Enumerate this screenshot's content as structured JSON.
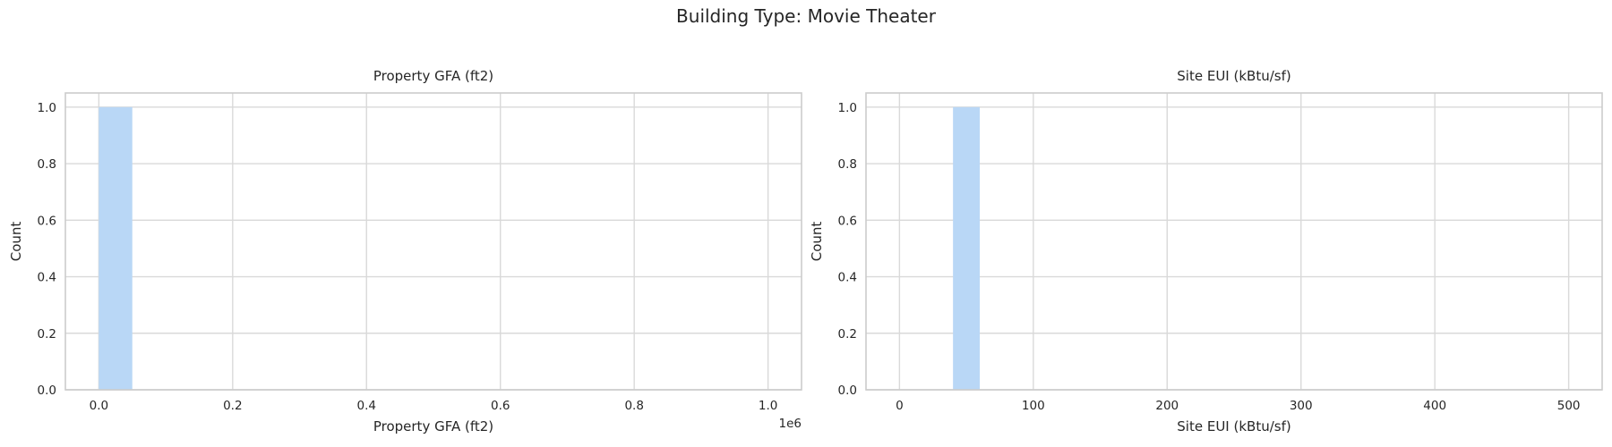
{
  "figure": {
    "title": "Building Type: Movie Theater"
  },
  "chart_data": [
    {
      "type": "bar",
      "title": "Property GFA (ft2)",
      "xlabel": "Property GFA (ft2)",
      "ylabel": "Count",
      "x_offset_label": "1e6",
      "xlim": [
        -0.05,
        1.05
      ],
      "ylim": [
        0,
        1.05
      ],
      "xticks": [
        0.0,
        0.2,
        0.4,
        0.6,
        0.8,
        1.0
      ],
      "xtick_labels": [
        "0.0",
        "0.2",
        "0.4",
        "0.6",
        "0.8",
        "1.0"
      ],
      "yticks": [
        0.0,
        0.2,
        0.4,
        0.6,
        0.8,
        1.0
      ],
      "ytick_labels": [
        "0.0",
        "0.2",
        "0.4",
        "0.6",
        "0.8",
        "1.0"
      ],
      "bins": [
        {
          "start": 0.0,
          "end": 0.05,
          "count": 1
        }
      ],
      "grid": true,
      "bar_color": "#b9d7f6"
    },
    {
      "type": "bar",
      "title": "Site EUI (kBtu/sf)",
      "xlabel": "Site EUI (kBtu/sf)",
      "ylabel": "Count",
      "x_offset_label": "",
      "xlim": [
        -25,
        525
      ],
      "ylim": [
        0,
        1.05
      ],
      "xticks": [
        0,
        100,
        200,
        300,
        400,
        500
      ],
      "xtick_labels": [
        "0",
        "100",
        "200",
        "300",
        "400",
        "500"
      ],
      "yticks": [
        0.0,
        0.2,
        0.4,
        0.6,
        0.8,
        1.0
      ],
      "ytick_labels": [
        "0.0",
        "0.2",
        "0.4",
        "0.6",
        "0.8",
        "1.0"
      ],
      "bins": [
        {
          "start": 40,
          "end": 60,
          "count": 1
        }
      ],
      "grid": true,
      "bar_color": "#b9d7f6"
    }
  ]
}
